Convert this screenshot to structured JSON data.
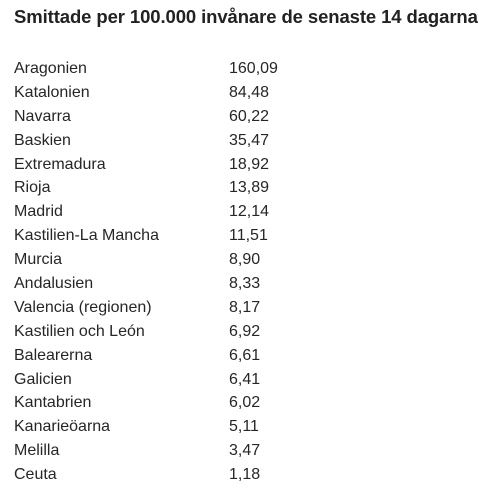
{
  "title": "Smittade per 100.000 invånare de senaste 14 dagarna:",
  "rows": [
    {
      "region": "Aragonien",
      "value": "160,09"
    },
    {
      "region": "Katalonien",
      "value": "84,48"
    },
    {
      "region": "Navarra",
      "value": "60,22"
    },
    {
      "region": "Baskien",
      "value": "35,47"
    },
    {
      "region": "Extremadura",
      "value": "18,92"
    },
    {
      "region": "Rioja",
      "value": "13,89"
    },
    {
      "region": "Madrid",
      "value": "12,14"
    },
    {
      "region": "Kastilien-La Mancha",
      "value": "11,51"
    },
    {
      "region": "Murcia",
      "value": "8,90"
    },
    {
      "region": "Andalusien",
      "value": "8,33"
    },
    {
      "region": "Valencia (regionen)",
      "value": "8,17"
    },
    {
      "region": "Kastilien och León",
      "value": "6,92"
    },
    {
      "region": "Balearerna",
      "value": "6,61"
    },
    {
      "region": "Galicien",
      "value": "6,41"
    },
    {
      "region": "Kantabrien",
      "value": "6,02"
    },
    {
      "region": "Kanarieöarna",
      "value": "5,11"
    },
    {
      "region": "Melilla",
      "value": "3,47"
    },
    {
      "region": "Ceuta",
      "value": "1,18"
    }
  ]
}
